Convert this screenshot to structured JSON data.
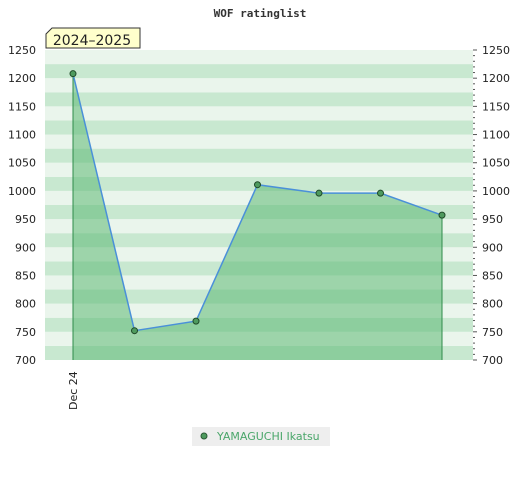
{
  "chart_data": {
    "type": "area",
    "title": "WOF ratinglist",
    "season_label": "2024–2025",
    "xlabel": "",
    "ylabel": "",
    "ylim": [
      700,
      1250
    ],
    "y_ticks": [
      700,
      750,
      800,
      850,
      900,
      950,
      1000,
      1050,
      1100,
      1150,
      1200,
      1250
    ],
    "x_tick_labels": [
      "Dec 24"
    ],
    "grid": true,
    "legend_position": "bottom",
    "series": [
      {
        "name": "YAMAGUCHI Ikatsu",
        "values": [
          1208,
          752,
          769,
          1011,
          996,
          996,
          957
        ]
      }
    ],
    "colors": {
      "line": "#4a90d9",
      "fill": "#5cb874",
      "marker": "#4e9a5e",
      "legend_text": "#4aa66a",
      "band_light": "#eaf5ec",
      "band_dark": "#c8e8d0",
      "season_bg": "#ffffcc"
    }
  }
}
